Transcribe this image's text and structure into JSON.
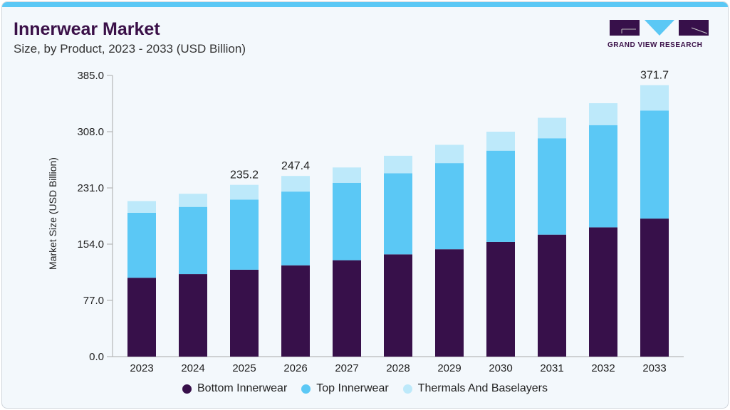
{
  "header": {
    "title": "Innerwear Market",
    "subtitle": "Size, by Product, 2023 - 2033 (USD Billion)"
  },
  "logo": {
    "text": "GRAND VIEW RESEARCH"
  },
  "colors": {
    "bottom": "#37104a",
    "top": "#5bc8f5",
    "thermals": "#bde9fa",
    "accent": "#5bc8f5"
  },
  "chart_data": {
    "type": "bar",
    "stacked": true,
    "title": "Innerwear Market",
    "subtitle": "Size, by Product, 2023 - 2033 (USD Billion)",
    "xlabel": "",
    "ylabel": "Market Size (USD Billion)",
    "ylim": [
      0,
      385
    ],
    "yticks": [
      "0.0",
      "77.0",
      "154.0",
      "231.0",
      "308.0",
      "385.0"
    ],
    "grid": false,
    "legend_placement": "bottom",
    "categories": [
      "2023",
      "2024",
      "2025",
      "2026",
      "2027",
      "2028",
      "2029",
      "2030",
      "2031",
      "2032",
      "2033"
    ],
    "series": [
      {
        "name": "Bottom Innerwear",
        "values": [
          108,
          113,
          119,
          125,
          132,
          140,
          147,
          157,
          167,
          177,
          189
        ]
      },
      {
        "name": "Top Innerwear",
        "values": [
          89,
          92,
          96,
          101,
          106,
          111,
          118,
          125,
          132,
          140,
          148
        ]
      },
      {
        "name": "Thermals And Baselayers",
        "values": [
          16,
          18,
          20.2,
          21.4,
          21,
          24,
          25,
          26,
          28,
          30,
          34.7
        ]
      }
    ],
    "data_labels": [
      {
        "category": "2025",
        "text": "235.2"
      },
      {
        "category": "2026",
        "text": "247.4"
      },
      {
        "category": "2033",
        "text": "371.7"
      }
    ]
  }
}
